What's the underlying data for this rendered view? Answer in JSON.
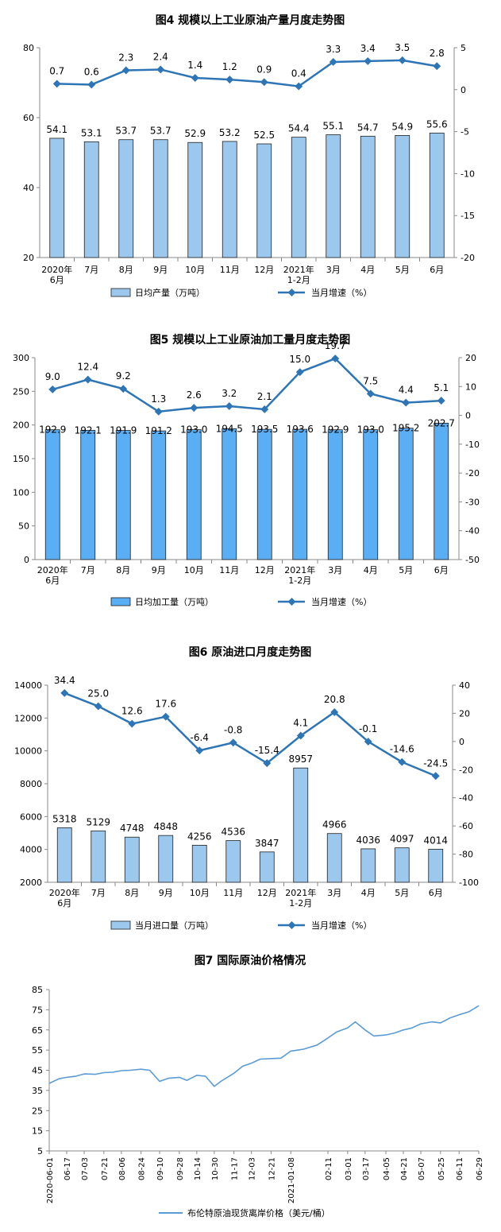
{
  "chart_data": [
    {
      "type": "bar",
      "title": "图4  规模以上工业原油产量月度走势图",
      "categories": [
        "2020年\n6月",
        "7月",
        "8月",
        "9月",
        "10月",
        "11月",
        "12月",
        "2021年\n1-2月",
        "3月",
        "4月",
        "5月",
        "6月"
      ],
      "ylim": [
        20,
        80
      ],
      "y_ticks": [
        "20",
        "40",
        "60",
        "80"
      ],
      "y2lim": [
        -20,
        5
      ],
      "y2_ticks": [
        "-20",
        "-15",
        "-10",
        "-5",
        "0",
        "5"
      ],
      "series": [
        {
          "name": "日均产量（万吨）",
          "type": "bar",
          "axis": "left",
          "values": [
            54.1,
            53.1,
            53.7,
            53.7,
            52.9,
            53.2,
            52.5,
            54.4,
            55.1,
            54.7,
            54.9,
            55.6
          ],
          "labels": [
            "54.1",
            "53.1",
            "53.7",
            "53.7",
            "52.9",
            "53.2",
            "52.5",
            "54.4",
            "55.1",
            "54.7",
            "54.9",
            "55.6"
          ]
        },
        {
          "name": "当月增速（%）",
          "type": "line",
          "axis": "right",
          "values": [
            0.7,
            0.6,
            2.3,
            2.4,
            1.4,
            1.2,
            0.9,
            0.4,
            3.3,
            3.4,
            3.5,
            2.8
          ],
          "labels": [
            "0.7",
            "0.6",
            "2.3",
            "2.4",
            "1.4",
            "1.2",
            "0.9",
            "0.4",
            "3.3",
            "3.4",
            "3.5",
            "2.8"
          ]
        }
      ],
      "legend_position": "bottom",
      "colors": {
        "bar": "#9dc8ee",
        "bar_edge": "#1f1f1f",
        "line": "#2e75b6"
      }
    },
    {
      "type": "bar",
      "title": "图5  规模以上工业原油加工量月度走势图",
      "categories": [
        "2020年\n6月",
        "7月",
        "8月",
        "9月",
        "10月",
        "11月",
        "12月",
        "2021年\n1-2月",
        "3月",
        "4月",
        "5月",
        "6月"
      ],
      "ylim": [
        0,
        300
      ],
      "y_ticks": [
        "0",
        "50",
        "100",
        "150",
        "200",
        "250",
        "300"
      ],
      "y2lim": [
        -50,
        20
      ],
      "y2_ticks": [
        "-50",
        "-40",
        "-30",
        "-20",
        "-10",
        "0",
        "10",
        "20"
      ],
      "series": [
        {
          "name": "日均加工量（万吨）",
          "type": "bar",
          "axis": "left",
          "values": [
            192.9,
            192.1,
            191.9,
            191.2,
            193.0,
            194.5,
            193.5,
            193.6,
            192.9,
            193.0,
            195.2,
            202.7
          ],
          "labels": [
            "192.9",
            "192.1",
            "191.9",
            "191.2",
            "193.0",
            "194.5",
            "193.5",
            "193.6",
            "192.9",
            "193.0",
            "195.2",
            "202.7"
          ]
        },
        {
          "name": "当月增速（%）",
          "type": "line",
          "axis": "right",
          "values": [
            9.0,
            12.4,
            9.2,
            1.3,
            2.6,
            3.2,
            2.1,
            15.0,
            19.7,
            7.5,
            4.4,
            5.1
          ],
          "labels": [
            "9.0",
            "12.4",
            "9.2",
            "1.3",
            "2.6",
            "3.2",
            "2.1",
            "15.0",
            "19.7",
            "7.5",
            "4.4",
            "5.1"
          ]
        }
      ],
      "legend_position": "bottom",
      "colors": {
        "bar": "#5aaef3",
        "bar_edge": "#1f1f1f",
        "line": "#2e75b6"
      }
    },
    {
      "type": "bar",
      "title": "图6  原油进口月度走势图",
      "categories": [
        "2020年\n6月",
        "7月",
        "8月",
        "9月",
        "10月",
        "11月",
        "12月",
        "2021年\n1-2月",
        "3月",
        "4月",
        "5月",
        "6月"
      ],
      "ylim": [
        2000,
        14000
      ],
      "y_ticks": [
        "2000",
        "4000",
        "6000",
        "8000",
        "10000",
        "12000",
        "14000"
      ],
      "y2lim": [
        -100,
        40
      ],
      "y2_ticks": [
        "-100",
        "-80",
        "-60",
        "-40",
        "-20",
        "0",
        "20",
        "40"
      ],
      "series": [
        {
          "name": "当月进口量（万吨）",
          "type": "bar",
          "axis": "left",
          "values": [
            5318,
            5129,
            4748,
            4848,
            4256,
            4536,
            3847,
            8957,
            4966,
            4036,
            4097,
            4014
          ],
          "labels": [
            "5318",
            "5129",
            "4748",
            "4848",
            "4256",
            "4536",
            "3847",
            "8957",
            "4966",
            "4036",
            "4097",
            "4014"
          ]
        },
        {
          "name": "当月增速（%）",
          "type": "line",
          "axis": "right",
          "values": [
            34.4,
            25.0,
            12.6,
            17.6,
            -6.4,
            -0.8,
            -15.4,
            4.1,
            20.8,
            -0.1,
            -14.6,
            -24.5
          ],
          "labels": [
            "34.4",
            "25.0",
            "12.6",
            "17.6",
            "-6.4",
            "-0.8",
            "-15.4",
            "4.1",
            "20.8",
            "-0.1",
            "-14.6",
            "-24.5"
          ]
        }
      ],
      "legend_position": "bottom",
      "colors": {
        "bar": "#9dc8ee",
        "bar_edge": "#1f1f1f",
        "line": "#2e75b6"
      }
    },
    {
      "type": "line",
      "title": "图7  国际原油价格情况",
      "ylim": [
        5,
        85
      ],
      "y_ticks": [
        "5",
        "15",
        "25",
        "35",
        "45",
        "55",
        "65",
        "75",
        "85"
      ],
      "x_ticks": [
        "2020-06-01",
        "06-17",
        "07-03",
        "07-21",
        "08-06",
        "08-24",
        "09-10",
        "09-28",
        "10-14",
        "10-30",
        "11-17",
        "12-03",
        "12-21",
        "2021-01-08",
        "02-11",
        "03-01",
        "03-17",
        "04-05",
        "04-21",
        "05-07",
        "05-25",
        "06-11",
        "06-29"
      ],
      "series": [
        {
          "name": "布伦特原油现货离岸价格（美元/桶）",
          "x": [
            "2020-06-01",
            "2020-06-10",
            "2020-06-17",
            "2020-06-25",
            "2020-07-03",
            "2020-07-13",
            "2020-07-21",
            "2020-07-29",
            "2020-08-06",
            "2020-08-14",
            "2020-08-24",
            "2020-09-01",
            "2020-09-10",
            "2020-09-18",
            "2020-09-28",
            "2020-10-05",
            "2020-10-14",
            "2020-10-22",
            "2020-10-30",
            "2020-11-05",
            "2020-11-17",
            "2020-11-25",
            "2020-12-03",
            "2020-12-11",
            "2020-12-21",
            "2020-12-30",
            "2021-01-08",
            "2021-01-20",
            "2021-02-01",
            "2021-02-11",
            "2021-02-19",
            "2021-03-01",
            "2021-03-08",
            "2021-03-17",
            "2021-03-25",
            "2021-04-05",
            "2021-04-13",
            "2021-04-21",
            "2021-04-29",
            "2021-05-07",
            "2021-05-17",
            "2021-05-25",
            "2021-06-03",
            "2021-06-11",
            "2021-06-20",
            "2021-06-29"
          ],
          "values": [
            38.5,
            40.8,
            41.5,
            42.0,
            43.2,
            43.0,
            43.8,
            44.0,
            44.8,
            45.0,
            45.5,
            45.0,
            39.5,
            41.0,
            41.5,
            40.0,
            42.5,
            42.0,
            37.0,
            39.5,
            43.5,
            47.0,
            48.5,
            50.5,
            50.8,
            51.0,
            54.5,
            55.5,
            57.5,
            61.0,
            64.0,
            66.0,
            69.0,
            65.0,
            62.0,
            62.5,
            63.5,
            65.0,
            66.0,
            68.0,
            69.0,
            68.5,
            71.0,
            72.5,
            74.0,
            77.0
          ]
        }
      ],
      "legend_position": "bottom",
      "colors": {
        "line": "#5b9bd5"
      }
    }
  ]
}
